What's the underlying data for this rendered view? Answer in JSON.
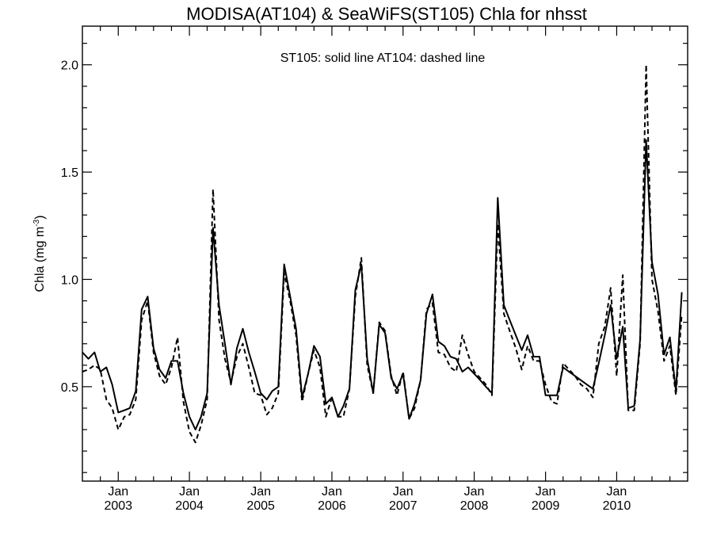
{
  "chart_data": {
    "type": "line",
    "title": "MODISA(AT104) & SeaWiFS(ST105)  Chla for nhsst",
    "annotation": "ST105: solid line   AT104: dashed line",
    "ylabel_main": "Chla (mg m",
    "ylabel_sup": "-3",
    "ylabel_close": ")",
    "xlim": [
      "2002-07-01",
      "2010-12-31"
    ],
    "ylim": [
      0.06,
      2.18
    ],
    "yticks": [
      {
        "value": 0.5,
        "label": "0.5"
      },
      {
        "value": 1.0,
        "label": "1.0"
      },
      {
        "value": 1.5,
        "label": "1.5"
      },
      {
        "value": 2.0,
        "label": "2.0"
      }
    ],
    "xticks": [
      {
        "date": "2003-01-01",
        "month": "Jan",
        "year": "2003"
      },
      {
        "date": "2004-01-01",
        "month": "Jan",
        "year": "2004"
      },
      {
        "date": "2005-01-01",
        "month": "Jan",
        "year": "2005"
      },
      {
        "date": "2006-01-01",
        "month": "Jan",
        "year": "2006"
      },
      {
        "date": "2007-01-01",
        "month": "Jan",
        "year": "2007"
      },
      {
        "date": "2008-01-01",
        "month": "Jan",
        "year": "2008"
      },
      {
        "date": "2009-01-01",
        "month": "Jan",
        "year": "2009"
      },
      {
        "date": "2010-01-01",
        "month": "Jan",
        "year": "2010"
      }
    ],
    "series": [
      {
        "name": "ST105",
        "style": "solid",
        "color": "#000000",
        "points": [
          [
            "2002-07-01",
            0.66
          ],
          [
            "2002-08-01",
            0.63
          ],
          [
            "2002-09-01",
            0.66
          ],
          [
            "2002-10-01",
            0.57
          ],
          [
            "2002-11-01",
            0.59
          ],
          [
            "2002-12-01",
            0.51
          ],
          [
            "2003-01-01",
            0.38
          ],
          [
            "2003-02-01",
            0.39
          ],
          [
            "2003-03-01",
            0.4
          ],
          [
            "2003-04-01",
            0.48
          ],
          [
            "2003-05-01",
            0.86
          ],
          [
            "2003-06-01",
            0.92
          ],
          [
            "2003-07-01",
            0.68
          ],
          [
            "2003-08-01",
            0.58
          ],
          [
            "2003-09-01",
            0.54
          ],
          [
            "2003-10-01",
            0.62
          ],
          [
            "2003-11-01",
            0.62
          ],
          [
            "2003-12-01",
            0.47
          ],
          [
            "2004-01-01",
            0.36
          ],
          [
            "2004-02-01",
            0.3
          ],
          [
            "2004-03-01",
            0.36
          ],
          [
            "2004-04-01",
            0.47
          ],
          [
            "2004-05-01",
            1.24
          ],
          [
            "2004-06-01",
            0.88
          ],
          [
            "2004-07-01",
            0.7
          ],
          [
            "2004-08-01",
            0.51
          ],
          [
            "2004-09-01",
            0.68
          ],
          [
            "2004-10-01",
            0.77
          ],
          [
            "2004-11-01",
            0.66
          ],
          [
            "2004-12-01",
            0.57
          ],
          [
            "2005-01-01",
            0.47
          ],
          [
            "2005-02-01",
            0.44
          ],
          [
            "2005-03-01",
            0.48
          ],
          [
            "2005-04-01",
            0.5
          ],
          [
            "2005-05-01",
            1.07
          ],
          [
            "2005-06-01",
            0.92
          ],
          [
            "2005-07-01",
            0.77
          ],
          [
            "2005-08-01",
            0.45
          ],
          [
            "2005-09-01",
            0.56
          ],
          [
            "2005-10-01",
            0.69
          ],
          [
            "2005-11-01",
            0.64
          ],
          [
            "2005-12-01",
            0.42
          ],
          [
            "2006-01-01",
            0.45
          ],
          [
            "2006-02-01",
            0.36
          ],
          [
            "2006-03-01",
            0.41
          ],
          [
            "2006-04-01",
            0.49
          ],
          [
            "2006-05-01",
            0.95
          ],
          [
            "2006-06-01",
            1.07
          ],
          [
            "2006-07-01",
            0.63
          ],
          [
            "2006-08-01",
            0.47
          ],
          [
            "2006-09-01",
            0.79
          ],
          [
            "2006-10-01",
            0.75
          ],
          [
            "2006-11-01",
            0.54
          ],
          [
            "2006-12-01",
            0.49
          ],
          [
            "2007-01-01",
            0.56
          ],
          [
            "2007-02-01",
            0.35
          ],
          [
            "2007-03-01",
            0.42
          ],
          [
            "2007-04-01",
            0.53
          ],
          [
            "2007-05-01",
            0.84
          ],
          [
            "2007-06-01",
            0.93
          ],
          [
            "2007-07-01",
            0.71
          ],
          [
            "2007-08-01",
            0.69
          ],
          [
            "2007-09-01",
            0.64
          ],
          [
            "2007-10-01",
            0.63
          ],
          [
            "2007-11-01",
            0.57
          ],
          [
            "2007-12-01",
            0.59
          ],
          [
            "2008-01-01",
            0.56
          ],
          [
            "2008-02-01",
            0.53
          ],
          [
            "2008-03-01",
            0.5
          ],
          [
            "2008-04-01",
            0.47
          ],
          [
            "2008-05-01",
            1.38
          ],
          [
            "2008-06-01",
            0.88
          ],
          [
            "2008-07-01",
            0.81
          ],
          [
            "2008-08-01",
            0.74
          ],
          [
            "2008-09-01",
            0.67
          ],
          [
            "2008-10-01",
            0.74
          ],
          [
            "2008-11-01",
            0.64
          ],
          [
            "2008-12-01",
            0.64
          ],
          [
            "2009-01-01",
            0.46
          ],
          [
            "2009-02-01",
            0.46
          ],
          [
            "2009-03-01",
            0.46
          ],
          [
            "2009-04-01",
            0.59
          ],
          [
            "2009-05-01",
            0.57
          ],
          [
            "2009-06-01",
            0.55
          ],
          [
            "2009-07-01",
            0.53
          ],
          [
            "2009-08-01",
            0.51
          ],
          [
            "2009-09-01",
            0.49
          ],
          [
            "2009-10-01",
            0.61
          ],
          [
            "2009-11-01",
            0.74
          ],
          [
            "2009-12-01",
            0.88
          ],
          [
            "2010-01-01",
            0.63
          ],
          [
            "2010-02-01",
            0.78
          ],
          [
            "2010-03-01",
            0.4
          ],
          [
            "2010-04-01",
            0.41
          ],
          [
            "2010-05-01",
            0.72
          ],
          [
            "2010-06-01",
            1.65
          ],
          [
            "2010-07-01",
            1.08
          ],
          [
            "2010-08-01",
            0.93
          ],
          [
            "2010-09-01",
            0.65
          ],
          [
            "2010-10-01",
            0.73
          ],
          [
            "2010-11-01",
            0.48
          ],
          [
            "2010-12-01",
            0.94
          ]
        ]
      },
      {
        "name": "AT104",
        "style": "dashed",
        "color": "#000000",
        "points": [
          [
            "2002-07-01",
            0.57
          ],
          [
            "2002-08-01",
            0.58
          ],
          [
            "2002-09-01",
            0.6
          ],
          [
            "2002-10-01",
            0.58
          ],
          [
            "2002-11-01",
            0.44
          ],
          [
            "2002-12-01",
            0.4
          ],
          [
            "2003-01-01",
            0.3
          ],
          [
            "2003-02-01",
            0.36
          ],
          [
            "2003-03-01",
            0.37
          ],
          [
            "2003-04-01",
            0.44
          ],
          [
            "2003-05-01",
            0.81
          ],
          [
            "2003-06-01",
            0.9
          ],
          [
            "2003-07-01",
            0.66
          ],
          [
            "2003-08-01",
            0.55
          ],
          [
            "2003-09-01",
            0.51
          ],
          [
            "2003-10-01",
            0.59
          ],
          [
            "2003-11-01",
            0.73
          ],
          [
            "2003-12-01",
            0.43
          ],
          [
            "2004-01-01",
            0.29
          ],
          [
            "2004-02-01",
            0.24
          ],
          [
            "2004-03-01",
            0.32
          ],
          [
            "2004-04-01",
            0.44
          ],
          [
            "2004-05-01",
            1.42
          ],
          [
            "2004-06-01",
            0.81
          ],
          [
            "2004-07-01",
            0.63
          ],
          [
            "2004-08-01",
            0.52
          ],
          [
            "2004-09-01",
            0.64
          ],
          [
            "2004-10-01",
            0.7
          ],
          [
            "2004-11-01",
            0.59
          ],
          [
            "2004-12-01",
            0.47
          ],
          [
            "2005-01-01",
            0.46
          ],
          [
            "2005-02-01",
            0.37
          ],
          [
            "2005-03-01",
            0.4
          ],
          [
            "2005-04-01",
            0.47
          ],
          [
            "2005-05-01",
            1.03
          ],
          [
            "2005-06-01",
            0.9
          ],
          [
            "2005-07-01",
            0.74
          ],
          [
            "2005-08-01",
            0.43
          ],
          [
            "2005-09-01",
            0.56
          ],
          [
            "2005-10-01",
            0.67
          ],
          [
            "2005-11-01",
            0.59
          ],
          [
            "2005-12-01",
            0.36
          ],
          [
            "2006-01-01",
            0.45
          ],
          [
            "2006-02-01",
            0.36
          ],
          [
            "2006-03-01",
            0.36
          ],
          [
            "2006-04-01",
            0.49
          ],
          [
            "2006-05-01",
            0.92
          ],
          [
            "2006-06-01",
            1.1
          ],
          [
            "2006-07-01",
            0.6
          ],
          [
            "2006-08-01",
            0.47
          ],
          [
            "2006-09-01",
            0.8
          ],
          [
            "2006-10-01",
            0.76
          ],
          [
            "2006-11-01",
            0.55
          ],
          [
            "2006-12-01",
            0.46
          ],
          [
            "2007-01-01",
            0.57
          ],
          [
            "2007-02-01",
            0.35
          ],
          [
            "2007-03-01",
            0.4
          ],
          [
            "2007-04-01",
            0.53
          ],
          [
            "2007-05-01",
            0.86
          ],
          [
            "2007-06-01",
            0.89
          ],
          [
            "2007-07-01",
            0.66
          ],
          [
            "2007-08-01",
            0.65
          ],
          [
            "2007-09-01",
            0.59
          ],
          [
            "2007-10-01",
            0.57
          ],
          [
            "2007-11-01",
            0.74
          ],
          [
            "2007-12-01",
            0.65
          ],
          [
            "2008-01-01",
            0.57
          ],
          [
            "2008-02-01",
            0.54
          ],
          [
            "2008-03-01",
            0.51
          ],
          [
            "2008-04-01",
            0.46
          ],
          [
            "2008-05-01",
            1.26
          ],
          [
            "2008-06-01",
            0.84
          ],
          [
            "2008-07-01",
            0.76
          ],
          [
            "2008-08-01",
            0.68
          ],
          [
            "2008-09-01",
            0.58
          ],
          [
            "2008-10-01",
            0.69
          ],
          [
            "2008-11-01",
            0.62
          ],
          [
            "2008-12-01",
            0.62
          ],
          [
            "2009-01-01",
            0.51
          ],
          [
            "2009-02-01",
            0.43
          ],
          [
            "2009-03-01",
            0.42
          ],
          [
            "2009-04-01",
            0.61
          ],
          [
            "2009-05-01",
            0.58
          ],
          [
            "2009-06-01",
            0.55
          ],
          [
            "2009-07-01",
            0.51
          ],
          [
            "2009-08-01",
            0.49
          ],
          [
            "2009-09-01",
            0.45
          ],
          [
            "2009-10-01",
            0.7
          ],
          [
            "2009-11-01",
            0.78
          ],
          [
            "2009-12-01",
            0.96
          ],
          [
            "2010-01-01",
            0.55
          ],
          [
            "2010-02-01",
            1.02
          ],
          [
            "2010-03-01",
            0.39
          ],
          [
            "2010-04-01",
            0.39
          ],
          [
            "2010-05-01",
            0.7
          ],
          [
            "2010-06-01",
            2.0
          ],
          [
            "2010-07-01",
            1.0
          ],
          [
            "2010-08-01",
            0.85
          ],
          [
            "2010-09-01",
            0.62
          ],
          [
            "2010-10-01",
            0.69
          ],
          [
            "2010-11-01",
            0.46
          ],
          [
            "2010-12-01",
            0.84
          ]
        ]
      }
    ]
  }
}
